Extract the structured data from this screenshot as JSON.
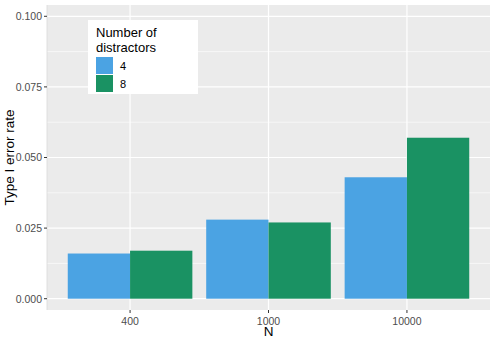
{
  "chart_data": {
    "type": "bar",
    "x_label": "N",
    "y_label": "Type I error rate",
    "legend_title": "Number of distractors",
    "categories": [
      "400",
      "1000",
      "10000"
    ],
    "series": [
      {
        "name": "4",
        "color": "#4ba3e3",
        "values": [
          0.016,
          0.028,
          0.043
        ]
      },
      {
        "name": "8",
        "color": "#1a9263",
        "values": [
          0.017,
          0.027,
          0.057
        ]
      }
    ],
    "ylim": [
      -0.004,
      0.104
    ],
    "yticks": [
      {
        "value": 0,
        "label": "0.000"
      },
      {
        "value": 0.025,
        "label": "0.025"
      },
      {
        "value": 0.05,
        "label": "0.050"
      },
      {
        "value": 0.075,
        "label": "0.075"
      },
      {
        "value": 0.1,
        "label": "0.100"
      }
    ],
    "grid": true,
    "legend": "top-left"
  }
}
